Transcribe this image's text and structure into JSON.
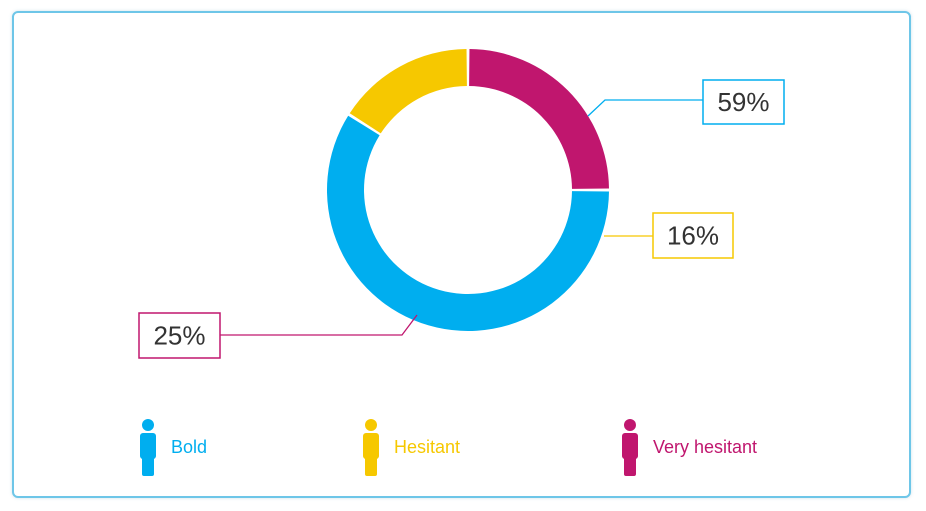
{
  "chart_data": {
    "type": "pie",
    "donut": true,
    "slices": [
      {
        "label": "Bold",
        "value": 59,
        "display": "59%",
        "color": "#00aeef"
      },
      {
        "label": "Hesitant",
        "value": 16,
        "display": "16%",
        "color": "#f6c800"
      },
      {
        "label": "Very hesitant",
        "value": 25,
        "display": "25%",
        "color": "#c0166e"
      }
    ]
  },
  "legend": [
    {
      "label": "Bold",
      "color": "#00aeef",
      "icon": "person-icon"
    },
    {
      "label": "Hesitant",
      "color": "#f6c800",
      "icon": "person-icon"
    },
    {
      "label": "Very hesitant",
      "color": "#c0166e",
      "icon": "person-icon"
    }
  ]
}
